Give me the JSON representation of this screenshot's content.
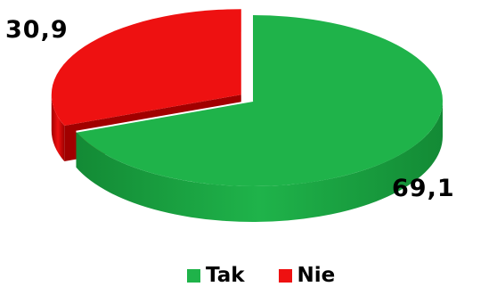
{
  "chart_data": {
    "type": "pie",
    "title": "",
    "categories": [
      "Tak",
      "Nie"
    ],
    "values": [
      69.1,
      30.9
    ],
    "value_labels": [
      "69,1",
      "30,9"
    ],
    "colors": [
      "#1fb34a",
      "#ee1111"
    ],
    "side_colors": [
      "#138a35",
      "#a10000"
    ],
    "legend_placement": "bottom",
    "exploded_slice": "Nie",
    "style": "3d"
  },
  "legend": {
    "items": [
      {
        "label": "Tak",
        "color": "#1fb34a"
      },
      {
        "label": "Nie",
        "color": "#ee1111"
      }
    ]
  }
}
